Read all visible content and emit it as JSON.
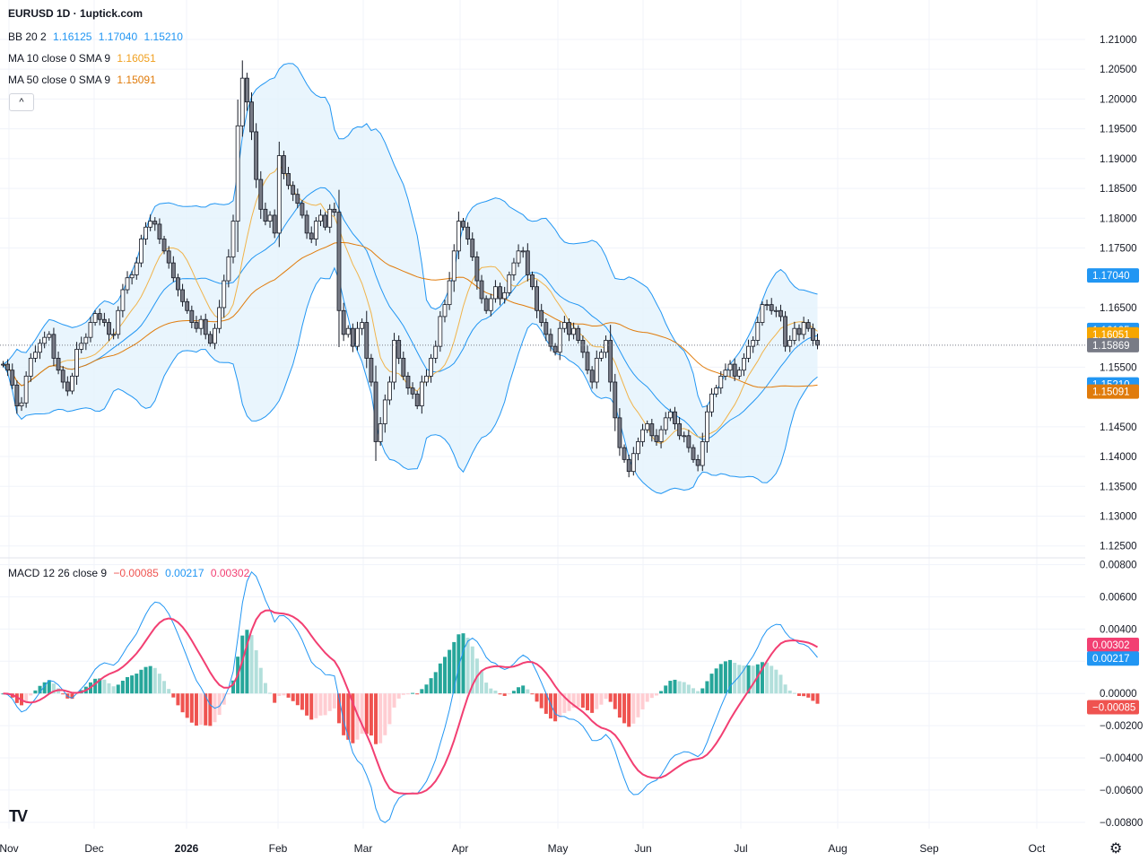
{
  "header": {
    "title": "EURUSD 1D · 1uptick.com"
  },
  "legend": {
    "bb": {
      "label": "BB 20 2",
      "values": [
        "1.16125",
        "1.17040",
        "1.15210"
      ]
    },
    "ma10": {
      "label": "MA 10 close 0 SMA 9",
      "value": "1.16051"
    },
    "ma50": {
      "label": "MA 50 close 0 SMA 9",
      "value": "1.15091"
    },
    "macd": {
      "label": "MACD 12 26 close 9",
      "values": [
        "−0.00085",
        "0.00217",
        "0.00302"
      ]
    }
  },
  "colors": {
    "up_candle": "#ffffff",
    "down_candle": "#787b86",
    "candle_border": "#131722",
    "bb_line": "#2196f3",
    "bb_fill": "#e3f2fd",
    "ma10": "#f0b34a",
    "ma50": "#e07b0b",
    "macd_line": "#2196f3",
    "signal_line": "#f23f72",
    "hist_up_strong": "#26a69a",
    "hist_up_weak": "#b2dfdb",
    "hist_down_strong": "#ef5350",
    "hist_down_weak": "#ffcdd2",
    "bb_up_tag": "#2196f3",
    "ma10_tag": "#f7a600",
    "ma50_tag": "#e07b0b",
    "last_tag": "#787b86",
    "macd_tag": "#2196f3",
    "signal_tag": "#f23f72",
    "hist_tag": "#ef5350"
  },
  "icons": {
    "collapse": "chevron-up-icon",
    "logo": "tradingview-logo-icon",
    "settings": "gear-icon"
  },
  "ui": {
    "collapse_glyph": "^",
    "logo_text": "TV",
    "settings_glyph": "⚙"
  },
  "chart_data": {
    "type": "candlestick",
    "title": "EURUSD 1D · 1uptick.com",
    "x_ticks": [
      "Nov",
      "Dec",
      "2026",
      "Feb",
      "Mar",
      "Apr",
      "May",
      "Jun",
      "Jul",
      "Aug",
      "Sep",
      "Oct"
    ],
    "price_axis": {
      "ticks": [
        "1.21000",
        "1.20500",
        "1.20000",
        "1.19500",
        "1.19000",
        "1.18500",
        "1.18000",
        "1.17500",
        "1.16500",
        "1.15500",
        "1.14500",
        "1.14000",
        "1.13500",
        "1.13000",
        "1.12500"
      ],
      "ylim": [
        1.123,
        1.2115
      ]
    },
    "price_tags": [
      {
        "label": "bb_upper",
        "value": 1.1704,
        "text": "1.17040"
      },
      {
        "label": "bb_basis",
        "value": 1.16125,
        "text": "1.16125"
      },
      {
        "label": "ma10",
        "value": 1.16051,
        "text": "1.16051"
      },
      {
        "label": "last",
        "value": 1.15869,
        "text": "1.15869"
      },
      {
        "label": "bb_lower",
        "value": 1.1521,
        "text": "1.15210"
      },
      {
        "label": "ma50",
        "value": 1.15091,
        "text": "1.15091"
      }
    ],
    "last_price": 1.15869,
    "closes": [
      1.1555,
      1.1545,
      1.152,
      1.1485,
      1.149,
      1.1535,
      1.1565,
      1.1575,
      1.159,
      1.16,
      1.1605,
      1.1565,
      1.1545,
      1.1525,
      1.151,
      1.1535,
      1.158,
      1.159,
      1.16,
      1.1625,
      1.164,
      1.163,
      1.1625,
      1.1605,
      1.1605,
      1.1645,
      1.168,
      1.17,
      1.1705,
      1.1725,
      1.1765,
      1.1785,
      1.1795,
      1.179,
      1.1765,
      1.1745,
      1.1725,
      1.17,
      1.168,
      1.166,
      1.1645,
      1.1625,
      1.1615,
      1.163,
      1.1605,
      1.159,
      1.1615,
      1.165,
      1.1695,
      1.1735,
      1.1795,
      1.1955,
      1.2035,
      1.1995,
      1.1945,
      1.1865,
      1.1815,
      1.1795,
      1.1805,
      1.1775,
      1.1905,
      1.1875,
      1.1855,
      1.184,
      1.1825,
      1.1805,
      1.1775,
      1.1765,
      1.1795,
      1.1805,
      1.1785,
      1.1815,
      1.181,
      1.1645,
      1.1605,
      1.1615,
      1.1585,
      1.1615,
      1.1625,
      1.1565,
      1.1525,
      1.1425,
      1.1455,
      1.1495,
      1.1525,
      1.1595,
      1.1565,
      1.1535,
      1.1515,
      1.1505,
      1.1485,
      1.1525,
      1.1535,
      1.1565,
      1.1585,
      1.1635,
      1.1655,
      1.1695,
      1.1745,
      1.1795,
      1.1785,
      1.1765,
      1.1735,
      1.1695,
      1.1665,
      1.1645,
      1.1665,
      1.1685,
      1.1665,
      1.1675,
      1.1705,
      1.1725,
      1.1745,
      1.1745,
      1.1705,
      1.1685,
      1.1645,
      1.1625,
      1.1605,
      1.1585,
      1.1575,
      1.1615,
      1.1625,
      1.1605,
      1.1615,
      1.1595,
      1.1575,
      1.1545,
      1.1525,
      1.1565,
      1.1575,
      1.1595,
      1.1525,
      1.1465,
      1.1415,
      1.1395,
      1.1375,
      1.1405,
      1.1425,
      1.1445,
      1.1455,
      1.1435,
      1.1425,
      1.1445,
      1.1465,
      1.1475,
      1.1455,
      1.1435,
      1.1435,
      1.1415,
      1.1395,
      1.1385,
      1.1425,
      1.1475,
      1.1505,
      1.1515,
      1.1535,
      1.1545,
      1.1555,
      1.1535,
      1.1545,
      1.1565,
      1.1585,
      1.1595,
      1.1625,
      1.1655,
      1.1655,
      1.1645,
      1.1645,
      1.1635,
      1.1585,
      1.1595,
      1.1615,
      1.1605,
      1.1625,
      1.1615,
      1.1595,
      1.15869
    ],
    "series": [
      {
        "name": "BB 20 2"
      },
      {
        "name": "MA 10 close 0 SMA 9"
      },
      {
        "name": "MA 50 close 0 SMA 9"
      },
      {
        "name": "MACD 12 26 close 9"
      }
    ],
    "macd_axis": {
      "ticks": [
        "0.00800",
        "0.00600",
        "0.00400",
        "0.00200",
        "0.00000",
        "−0.00200",
        "−0.00400",
        "−0.00600",
        "−0.00800"
      ],
      "ylim": [
        -0.0084,
        0.0082
      ]
    },
    "macd_tags": [
      {
        "label": "signal",
        "value": 0.00302,
        "text": "0.00302"
      },
      {
        "label": "macd",
        "value": 0.00217,
        "text": "0.00217"
      },
      {
        "label": "histogram",
        "value": -0.00085,
        "text": "−0.00085"
      }
    ]
  }
}
